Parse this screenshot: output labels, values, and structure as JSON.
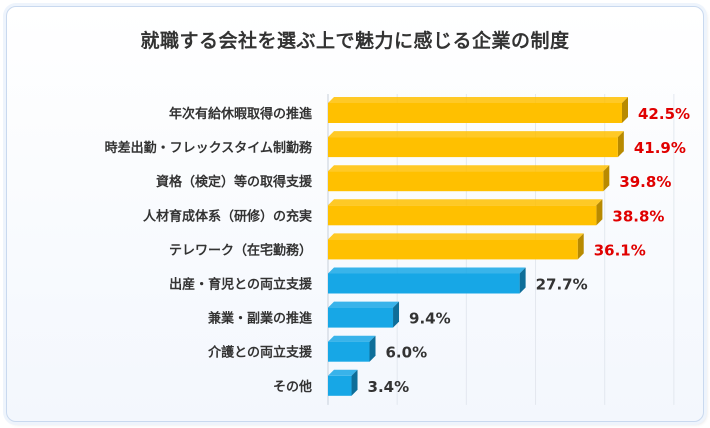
{
  "chart_data": {
    "type": "bar",
    "orientation": "horizontal",
    "title": "就職する会社を選ぶ上で魅力に感じる企業の制度",
    "categories": [
      "年次有給休暇取得の推進",
      "時差出勤・フレックスタイム制勤務",
      "資格（検定）等の取得支援",
      "人材育成体系（研修）の充実",
      "テレワーク（在宅勤務）",
      "出産・育児との両立支援",
      "兼業・副業の推進",
      "介護との両立支援",
      "その他"
    ],
    "values": [
      42.5,
      41.9,
      39.8,
      38.8,
      36.1,
      27.7,
      9.4,
      6.0,
      3.4
    ],
    "value_labels": [
      "42.5%",
      "41.9%",
      "39.8%",
      "38.8%",
      "36.1%",
      "27.7%",
      "9.4%",
      "6.0%",
      "3.4%"
    ],
    "highlight_top_n": 5,
    "colors": {
      "highlight_bar": "#FFC000",
      "highlight_bar_dark": "#B88A00",
      "highlight_label": "#E00000",
      "normal_bar": "#17A7E6",
      "normal_bar_dark": "#0E6E99",
      "normal_label": "#333333"
    },
    "xlim": [
      0,
      50
    ],
    "grid": true,
    "legend": "none"
  }
}
